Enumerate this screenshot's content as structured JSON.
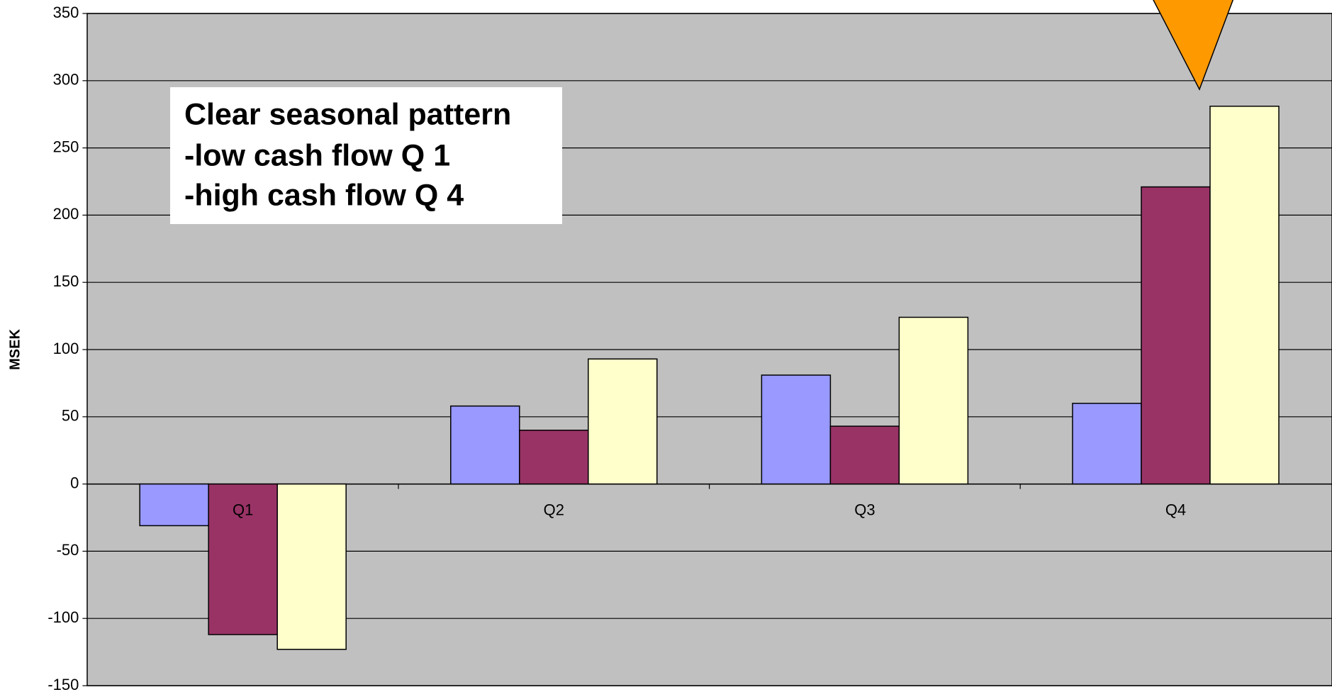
{
  "chart_data": {
    "type": "bar",
    "y_label": "MSEK",
    "annotation": [
      "Clear seasonal pattern",
      "-low cash flow Q 1",
      "-high cash flow Q 4"
    ],
    "categories": [
      "Q1",
      "Q2",
      "Q3",
      "Q4"
    ],
    "series": [
      {
        "color": "#9999ff",
        "values": [
          -31,
          58,
          81,
          60
        ]
      },
      {
        "color": "#993366",
        "values": [
          -112,
          40,
          43,
          221
        ]
      },
      {
        "color": "#ffffcc",
        "values": [
          -123,
          93,
          124,
          281
        ]
      }
    ],
    "ylim": [
      -150,
      350
    ],
    "yticks": [
      -150,
      -100,
      -50,
      0,
      50,
      100,
      150,
      200,
      250,
      300,
      350
    ],
    "grid": true,
    "plot_color": "#c0c0c0"
  }
}
